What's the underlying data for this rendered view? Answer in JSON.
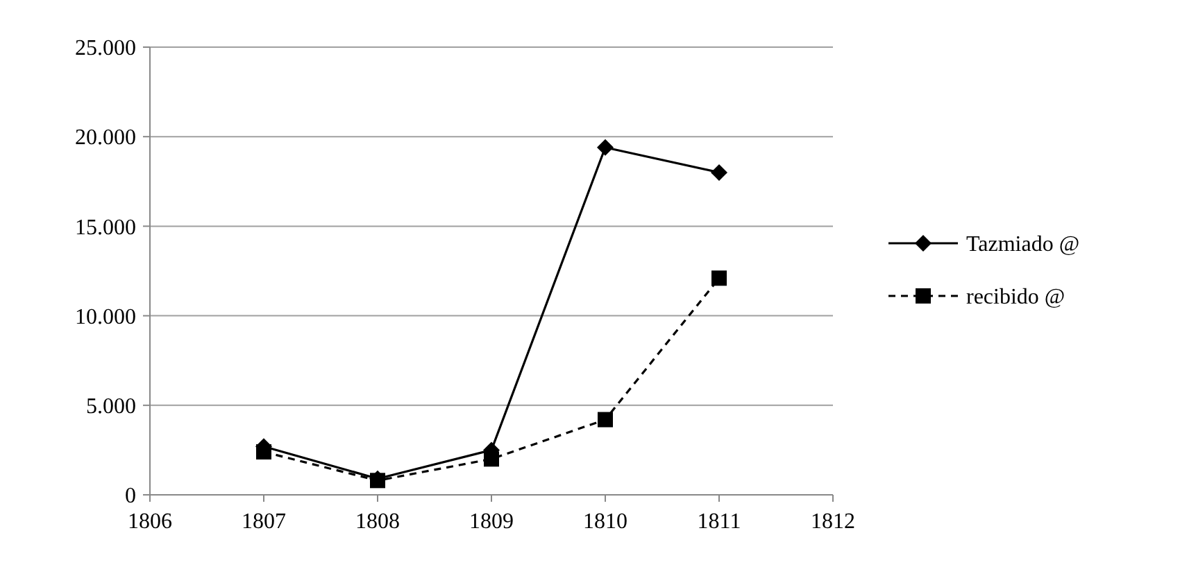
{
  "chart_data": {
    "type": "line",
    "x": [
      1807,
      1808,
      1809,
      1810,
      1811
    ],
    "series": [
      {
        "name": "Tazmiado @",
        "color": "#000000",
        "values": [
          2700,
          900,
          2500,
          19400,
          18000
        ],
        "marker": "diamond",
        "line_style": "solid"
      },
      {
        "name": "recibido @",
        "color": "#000000",
        "values": [
          2400,
          800,
          2000,
          4200,
          12100
        ],
        "marker": "square",
        "line_style": "dashed"
      }
    ],
    "xlim": [
      1806,
      1812
    ],
    "xticks": [
      1806,
      1807,
      1808,
      1809,
      1810,
      1811,
      1812
    ],
    "ylim": [
      0,
      25000
    ],
    "yticks": [
      {
        "value": 0,
        "label": "0"
      },
      {
        "value": 5000,
        "label": "5.000"
      },
      {
        "value": 10000,
        "label": "10.000"
      },
      {
        "value": 15000,
        "label": "15.000"
      },
      {
        "value": 20000,
        "label": "20.000"
      },
      {
        "value": 25000,
        "label": "25.000"
      }
    ],
    "grid": "y",
    "legend": "right"
  }
}
